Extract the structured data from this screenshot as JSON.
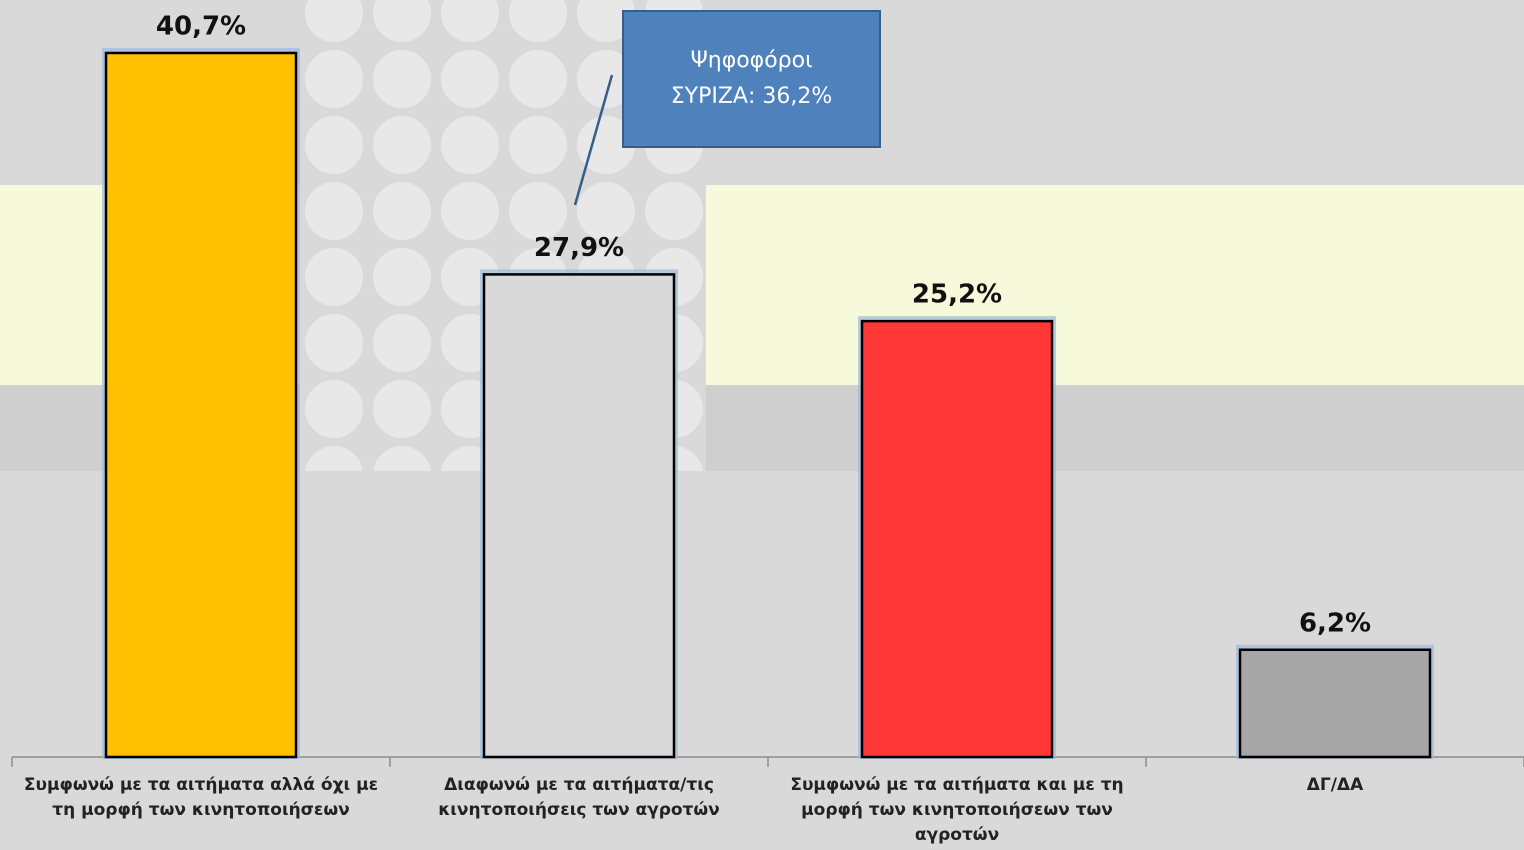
{
  "chart_data": {
    "type": "bar",
    "categories": [
      "Συμφωνώ με τα αιτήματα αλλά όχι με τη μορφή των κινητοποιήσεων",
      "Διαφωνώ με τα αιτήματα/τις κινητοποιήσεις των αγροτών",
      "Συμφωνώ με τα αιτήματα και με τη μορφή των  κινητοποιήσεων των αγροτών",
      "ΔΓ/ΔΑ"
    ],
    "values": [
      40.7,
      27.9,
      25.2,
      6.2
    ],
    "value_labels": [
      "40,7%",
      "27,9%",
      "25,2%",
      "6,2%"
    ],
    "colors": [
      "#ffc000",
      "#d9d9d9",
      "#ff3737",
      "#a6a6a6"
    ],
    "annotation": "Ψηφοφόροι ΣΥΡΙΖΑ: 36,2%"
  }
}
